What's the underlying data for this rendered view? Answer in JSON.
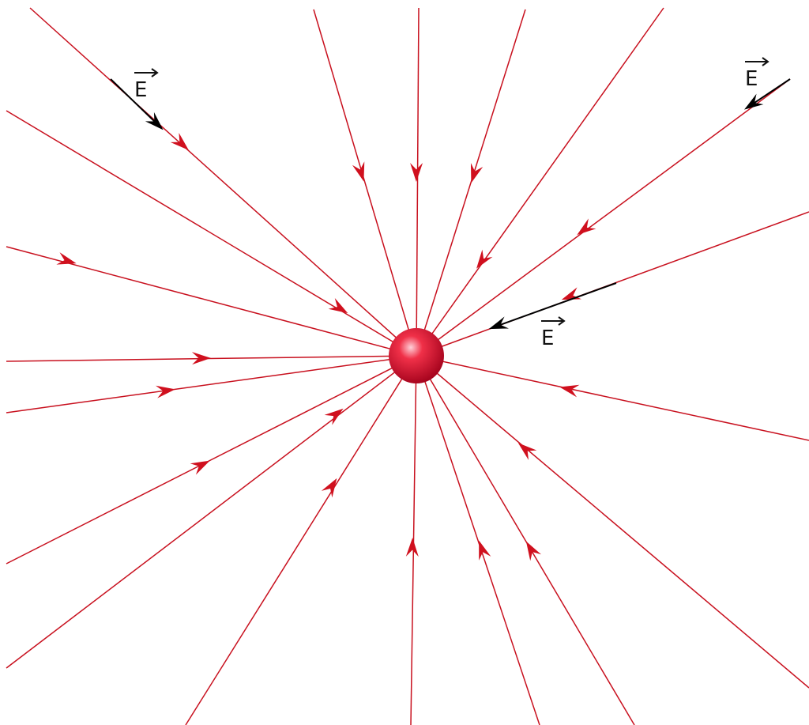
{
  "vector_labels": [
    "E",
    "E",
    "E"
  ]
}
